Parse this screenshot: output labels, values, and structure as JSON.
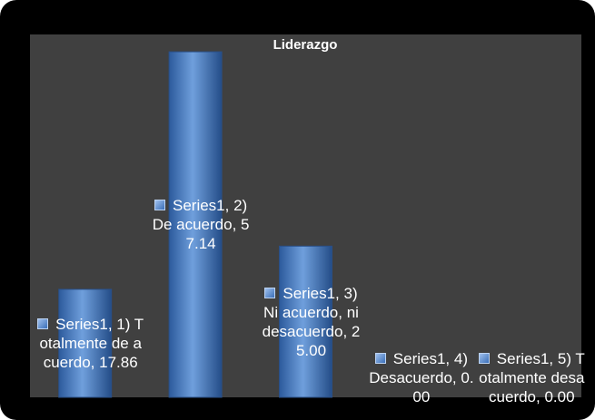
{
  "chart_data": {
    "type": "bar",
    "title": "Liderazgo",
    "series_name": "Series1",
    "label_separator": ", ",
    "categories": [
      "1) Totalmente de acuerdo",
      "2) De acuerdo",
      "3) Ni acuerdo, ni desacuerdo",
      "4) Desacuerdo",
      "5) Totalmente desacuerdo"
    ],
    "values": [
      17.86,
      57.14,
      25.0,
      0.0,
      0.0
    ],
    "value_labels": [
      "17.86",
      "57.14",
      "25.00",
      "0.00",
      "0.00"
    ],
    "color": "#3a6fb8",
    "ylim": [
      0,
      60
    ]
  }
}
